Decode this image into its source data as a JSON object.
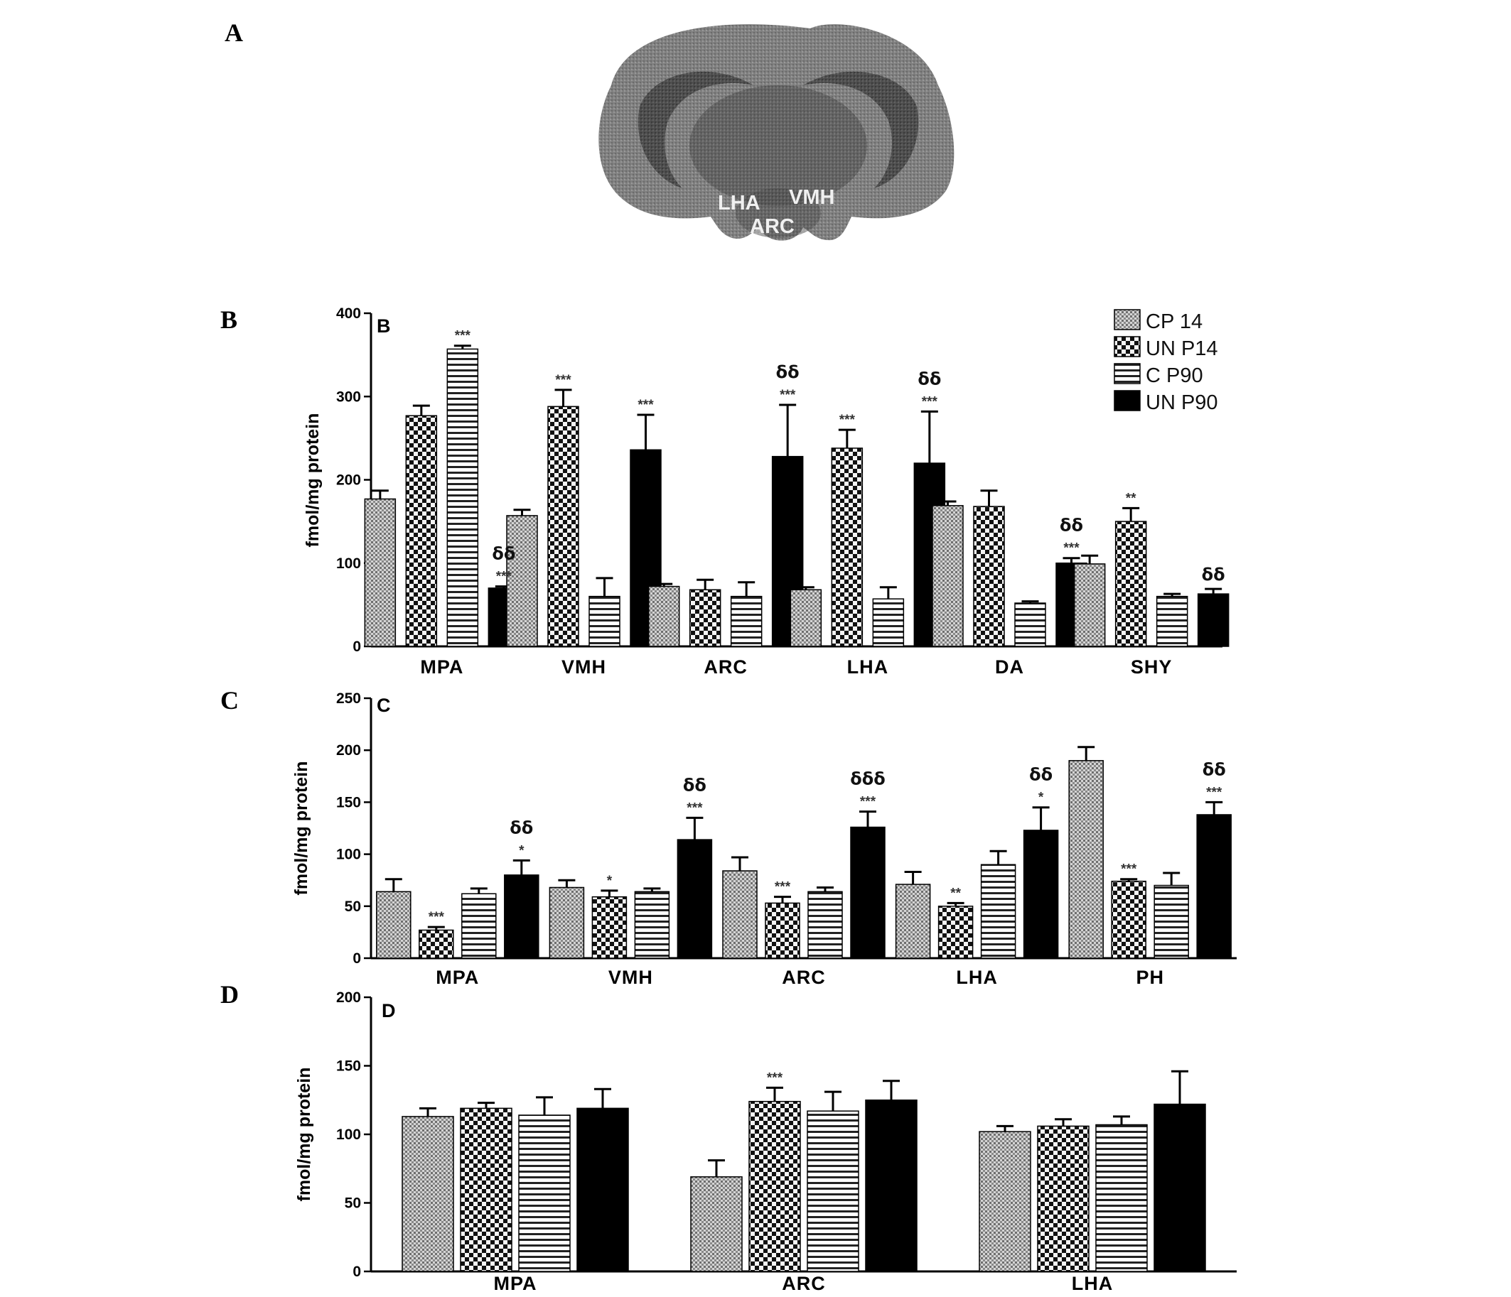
{
  "panel_letters": {
    "a": "A",
    "b": "B",
    "c": "C",
    "d": "D"
  },
  "brain": {
    "labels": [
      "LHA",
      "VMH",
      "ARC"
    ]
  },
  "legend": [
    "CP 14",
    "UN P14",
    "C P90",
    "UN P90"
  ],
  "chart_data": [
    {
      "type": "bar",
      "inner_label": "B",
      "ylabel": "fmol/mg protein",
      "ylim": [
        0,
        400
      ],
      "yticks": [
        "0",
        "100",
        "200",
        "300",
        "400"
      ],
      "categories": [
        "MPA",
        "VMH",
        "ARC",
        "LHA",
        "DA",
        "SHY"
      ],
      "series": [
        {
          "name": "CP 14",
          "values": [
            177,
            157,
            72,
            68,
            169,
            99
          ],
          "errors": [
            10,
            7,
            3,
            3,
            5,
            10
          ]
        },
        {
          "name": "UN P14",
          "values": [
            277,
            288,
            68,
            238,
            168,
            150
          ],
          "errors": [
            12,
            20,
            12,
            22,
            19,
            16
          ]
        },
        {
          "name": "C P90",
          "values": [
            357,
            60,
            60,
            57,
            52,
            60
          ],
          "errors": [
            4,
            22,
            17,
            14,
            2,
            3
          ]
        },
        {
          "name": "UN P90",
          "values": [
            70,
            236,
            228,
            220,
            100,
            63
          ],
          "errors": [
            2,
            42,
            62,
            62,
            6,
            6
          ]
        }
      ],
      "annotations": [
        {
          "category": "MPA",
          "series": "C P90",
          "text": [
            "***"
          ]
        },
        {
          "category": "MPA",
          "series": "UN P90",
          "text": [
            "δδ",
            "***"
          ]
        },
        {
          "category": "VMH",
          "series": "UN P14",
          "text": [
            "***"
          ]
        },
        {
          "category": "VMH",
          "series": "UN P90",
          "text": [
            "***"
          ]
        },
        {
          "category": "ARC",
          "series": "UN P90",
          "text": [
            "δδ",
            "***"
          ]
        },
        {
          "category": "LHA",
          "series": "UN P14",
          "text": [
            "***"
          ]
        },
        {
          "category": "LHA",
          "series": "UN P90",
          "text": [
            "δδ",
            "***"
          ]
        },
        {
          "category": "DA",
          "series": "UN P90",
          "text": [
            "δδ",
            "***"
          ]
        },
        {
          "category": "SHY",
          "series": "UN P14",
          "text": [
            "**"
          ]
        },
        {
          "category": "SHY",
          "series": "UN P90",
          "text": [
            "δδ"
          ]
        }
      ]
    },
    {
      "type": "bar",
      "inner_label": "C",
      "ylabel": "fmol/mg protein",
      "ylim": [
        0,
        250
      ],
      "yticks": [
        "0",
        "50",
        "100",
        "150",
        "200",
        "250"
      ],
      "categories": [
        "MPA",
        "VMH",
        "ARC",
        "LHA",
        "PH"
      ],
      "series": [
        {
          "name": "CP 14",
          "values": [
            64,
            68,
            84,
            71,
            190
          ],
          "errors": [
            12,
            7,
            13,
            12,
            13
          ]
        },
        {
          "name": "UN P14",
          "values": [
            27,
            59,
            53,
            50,
            74
          ],
          "errors": [
            3,
            6,
            6,
            3,
            2
          ]
        },
        {
          "name": "C P90",
          "values": [
            62,
            64,
            64,
            90,
            70
          ],
          "errors": [
            5,
            3,
            4,
            13,
            12
          ]
        },
        {
          "name": "UN P90",
          "values": [
            80,
            114,
            126,
            123,
            138
          ],
          "errors": [
            14,
            21,
            15,
            22,
            12
          ]
        }
      ],
      "annotations": [
        {
          "category": "MPA",
          "series": "UN P14",
          "text": [
            "***"
          ]
        },
        {
          "category": "MPA",
          "series": "UN P90",
          "text": [
            "δδ",
            "*"
          ]
        },
        {
          "category": "VMH",
          "series": "UN P14",
          "text": [
            "*"
          ]
        },
        {
          "category": "VMH",
          "series": "UN P90",
          "text": [
            "δδ",
            "***"
          ]
        },
        {
          "category": "ARC",
          "series": "UN P14",
          "text": [
            "***"
          ]
        },
        {
          "category": "ARC",
          "series": "UN P90",
          "text": [
            "δδδ",
            "***"
          ]
        },
        {
          "category": "LHA",
          "series": "UN P14",
          "text": [
            "**"
          ]
        },
        {
          "category": "LHA",
          "series": "UN P90",
          "text": [
            "δδ",
            "*"
          ]
        },
        {
          "category": "PH",
          "series": "UN P14",
          "text": [
            "***"
          ]
        },
        {
          "category": "PH",
          "series": "UN P90",
          "text": [
            "δδ",
            "***"
          ]
        }
      ]
    },
    {
      "type": "bar",
      "inner_label": "D",
      "ylabel": "fmol/mg protein",
      "ylim": [
        0,
        200
      ],
      "yticks": [
        "0",
        "50",
        "100",
        "150",
        "200"
      ],
      "categories": [
        "MPA",
        "ARC",
        "LHA"
      ],
      "series": [
        {
          "name": "CP 14",
          "values": [
            113,
            69,
            102
          ],
          "errors": [
            6,
            12,
            4
          ]
        },
        {
          "name": "UN P14",
          "values": [
            119,
            124,
            106
          ],
          "errors": [
            4,
            10,
            5
          ]
        },
        {
          "name": "C P90",
          "values": [
            114,
            117,
            107
          ],
          "errors": [
            13,
            14,
            6
          ]
        },
        {
          "name": "UN P90",
          "values": [
            119,
            125,
            122
          ],
          "errors": [
            14,
            14,
            24
          ]
        }
      ],
      "annotations": [
        {
          "category": "ARC",
          "series": "UN P14",
          "text": [
            "***"
          ]
        }
      ]
    }
  ],
  "style": {
    "bar_stroke": "#000000",
    "pattern_colors": {
      "cp14": "#7a7a7a",
      "unp14": "#111111",
      "cp90": "#222222",
      "unp90": "#000000"
    }
  }
}
